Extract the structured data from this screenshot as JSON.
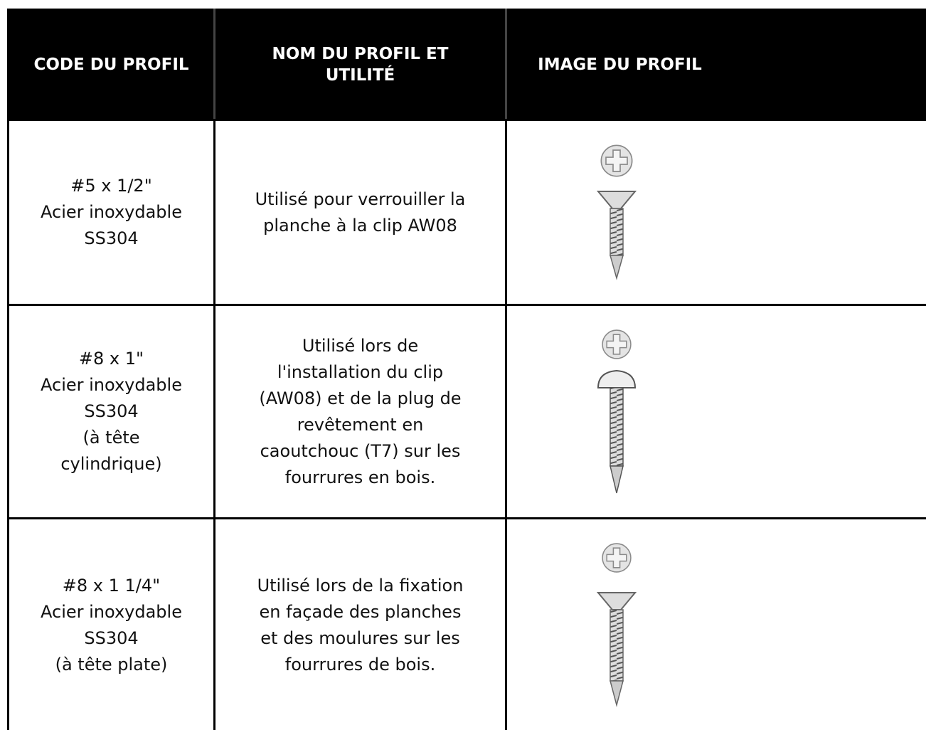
{
  "table": {
    "header": [
      [
        "CODE DU PROFIL"
      ],
      [
        "NOM DU PROFIL ET",
        "UTILITÉ"
      ],
      [
        "IMAGE DU PROFIL"
      ]
    ],
    "rows": [
      {
        "code": [
          "#5 x 1/2\"",
          "Acier inoxydable",
          "SS304"
        ],
        "use": [
          "Utilisé pour verrouiller la",
          "planche à la clip AW08"
        ]
      },
      {
        "code": [
          "#8 x 1\"",
          "Acier inoxydable",
          "SS304",
          "(à tête",
          "cylindrique)"
        ],
        "use": [
          "Utilisé lors de",
          "l'installation du clip",
          "(AW08) et de la plug de",
          "revêtement en",
          "caoutchouc (T7) sur les",
          "fourrures en bois."
        ]
      },
      {
        "code": [
          "#8 x 1 1/4\"",
          "Acier inoxydable",
          "SS304",
          "(à tête plate)"
        ],
        "use": [
          "Utilisé lors de la fixation",
          "en façade des planches",
          "et des moulures sur les",
          "fourrures de bois."
        ]
      }
    ]
  }
}
